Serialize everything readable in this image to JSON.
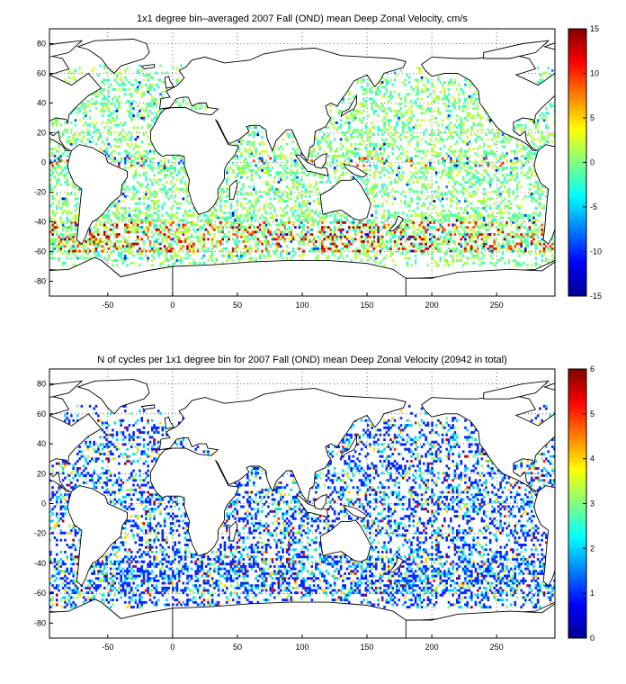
{
  "chart_data": [
    {
      "type": "heatmap",
      "title": "1x1 degree bin–averaged 2007 Fall (OND) mean Deep Zonal Velocity, cm/s",
      "xlabel": "",
      "ylabel": "",
      "xlim": [
        -95,
        295
      ],
      "ylim": [
        -90,
        90
      ],
      "x_ticks": [
        -50,
        0,
        50,
        100,
        150,
        200,
        250
      ],
      "y_ticks": [
        80,
        60,
        40,
        20,
        0,
        -20,
        -40,
        -60,
        -80
      ],
      "grid": true,
      "colorbar": {
        "min": -15,
        "max": 15,
        "ticks": [
          15,
          10,
          5,
          0,
          -5,
          -10,
          -15
        ],
        "colormap": "jet"
      },
      "value_range": [
        -15,
        15
      ],
      "typical_values": "mostly near 0 (green/cyan); strong positive eastward bands (red) near 40-60S Antarctic Circumpolar Current and along equator"
    },
    {
      "type": "heatmap",
      "title": "N of cycles per 1x1 degree bin for 2007 Fall (OND) mean Deep Zonal Velocity (20942 in total)",
      "xlabel": "",
      "ylabel": "",
      "xlim": [
        -95,
        295
      ],
      "ylim": [
        -90,
        90
      ],
      "x_ticks": [
        -50,
        0,
        50,
        100,
        150,
        200,
        250
      ],
      "y_ticks": [
        80,
        60,
        40,
        20,
        0,
        -20,
        -40,
        -60,
        -80
      ],
      "grid": true,
      "colorbar": {
        "min": 0,
        "max": 6,
        "ticks": [
          6,
          5,
          4,
          3,
          2,
          1,
          0
        ],
        "colormap": "jet"
      },
      "value_range": [
        0,
        6
      ],
      "typical_values": "mostly 1-2 cycles per bin (blue), occasional 4-6 (yellow/red)"
    }
  ],
  "colors": {
    "land_outline": "#000000",
    "grid": "#000000",
    "background": "#ffffff"
  }
}
